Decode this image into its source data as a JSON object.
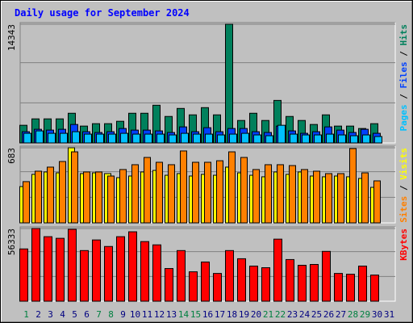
{
  "chart_data": [
    {
      "type": "bar",
      "title": "Daily usage for September 2024",
      "categories": [
        "1",
        "2",
        "3",
        "4",
        "5",
        "6",
        "7",
        "8",
        "9",
        "10",
        "11",
        "12",
        "13",
        "14",
        "15",
        "16",
        "17",
        "18",
        "19",
        "20",
        "21",
        "22",
        "23",
        "24",
        "25",
        "26",
        "27",
        "28",
        "29",
        "30",
        "31"
      ],
      "category_colors": [
        "#008040",
        "#000080",
        "#000080",
        "#000080",
        "#000080",
        "#000080",
        "#008040",
        "#008040",
        "#000080",
        "#000080",
        "#000080",
        "#000080",
        "#000080",
        "#008040",
        "#008040",
        "#000080",
        "#000080",
        "#000080",
        "#000080",
        "#000080",
        "#008040",
        "#008040",
        "#000080",
        "#000080",
        "#000080",
        "#000080",
        "#000080",
        "#008040",
        "#008040",
        "#000080",
        "#000080"
      ],
      "separator": " / ",
      "ylim": [
        0,
        14343
      ],
      "yticks": [
        14343
      ],
      "series": [
        {
          "name": "Pages",
          "color": "#00c0ff",
          "values": [
            1163,
            1454,
            1163,
            1163,
            1357,
            1066,
            1066,
            1066,
            1163,
            1066,
            1066,
            1066,
            969,
            1163,
            1066,
            1066,
            969,
            1066,
            1163,
            969,
            872,
            2132,
            1066,
            969,
            969,
            1066,
            969,
            872,
            969,
            775,
            null
          ]
        },
        {
          "name": "Files",
          "color": "#0040ff",
          "values": [
            1357,
            1647,
            1550,
            1647,
            2229,
            1357,
            1260,
            1357,
            1744,
            1550,
            1550,
            1454,
            1260,
            1938,
            1357,
            1841,
            1357,
            1744,
            1744,
            1357,
            1260,
            2035,
            1454,
            1163,
            1357,
            1938,
            1550,
            1260,
            1647,
            1163,
            null
          ]
        },
        {
          "name": "Hits",
          "color": "#00805c",
          "values": [
            2132,
            2907,
            2907,
            2907,
            3585,
            2035,
            2326,
            2326,
            2616,
            3585,
            3585,
            4554,
            3198,
            4167,
            3392,
            4264,
            3392,
            14343,
            2713,
            3585,
            2713,
            5136,
            3198,
            2713,
            2229,
            3392,
            2035,
            2035,
            1744,
            2326,
            null
          ]
        }
      ]
    },
    {
      "type": "bar",
      "separator": " / ",
      "ylim": [
        0,
        683
      ],
      "yticks": [
        683
      ],
      "series": [
        {
          "name": "Sites",
          "color": "#ff8000",
          "values": [
            375,
            470,
            507,
            558,
            646,
            463,
            463,
            426,
            485,
            529,
            595,
            551,
            529,
            654,
            551,
            551,
            565,
            646,
            595,
            485,
            529,
            529,
            521,
            485,
            470,
            448,
            448,
            676,
            455,
            382,
            null
          ]
        },
        {
          "name": "Visits",
          "color": "#ffff00",
          "values": [
            330,
            441,
            463,
            455,
            683,
            448,
            455,
            448,
            411,
            426,
            463,
            477,
            433,
            448,
            426,
            441,
            433,
            507,
            455,
            433,
            419,
            463,
            441,
            463,
            426,
            419,
            426,
            419,
            404,
            323,
            null
          ]
        }
      ]
    },
    {
      "type": "bar",
      "ylim": [
        0,
        56333
      ],
      "yticks": [
        56333
      ],
      "series": [
        {
          "name": "KBytes",
          "color": "#ff0000",
          "values": [
            40512,
            56333,
            50007,
            48741,
            55704,
            39246,
            47475,
            42411,
            50007,
            53805,
            46209,
            43677,
            25320,
            39246,
            22788,
            30384,
            21522,
            39246,
            32916,
            27219,
            25953,
            48108,
            32283,
            27852,
            28485,
            38613,
            21522,
            20889,
            27219,
            20256,
            null
          ]
        }
      ]
    }
  ]
}
